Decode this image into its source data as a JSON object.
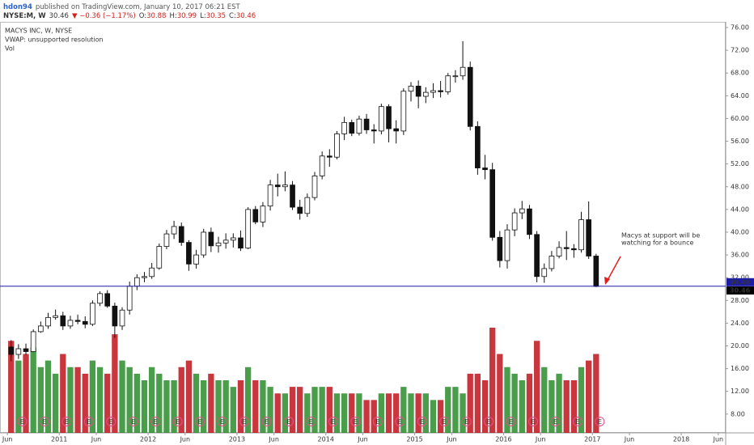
{
  "header": {
    "user": "hdon94",
    "published": "published on TradingView.com, January 10, 2017 06:21 EST",
    "symbol": "NYSE:M, W",
    "last": "30.46",
    "change": "▼ −0.36 (−1.17%)",
    "ohlc": [
      {
        "label": "O:",
        "value": "30.88"
      },
      {
        "label": "H:",
        "value": "30.99"
      },
      {
        "label": "L:",
        "value": "30.35"
      },
      {
        "label": "C:",
        "value": "30.46"
      }
    ]
  },
  "chart_data": {
    "type": "candlestick",
    "legend": [
      "MACYS INC, W, NYSE",
      "VWAP: unsupported resolution",
      "Vol"
    ],
    "x": [
      "2010-06",
      "2010-07",
      "2010-08",
      "2010-09",
      "2010-10",
      "2010-11",
      "2010-12",
      "2011-01",
      "2011-02",
      "2011-03",
      "2011-04",
      "2011-05",
      "2011-06",
      "2011-07",
      "2011-08",
      "2011-09",
      "2011-10",
      "2011-11",
      "2011-12",
      "2012-01",
      "2012-02",
      "2012-03",
      "2012-04",
      "2012-05",
      "2012-06",
      "2012-07",
      "2012-08",
      "2012-09",
      "2012-10",
      "2012-11",
      "2012-12",
      "2013-01",
      "2013-02",
      "2013-03",
      "2013-04",
      "2013-05",
      "2013-06",
      "2013-07",
      "2013-08",
      "2013-09",
      "2013-10",
      "2013-11",
      "2013-12",
      "2014-01",
      "2014-02",
      "2014-03",
      "2014-04",
      "2014-05",
      "2014-06",
      "2014-07",
      "2014-08",
      "2014-09",
      "2014-10",
      "2014-11",
      "2014-12",
      "2015-01",
      "2015-02",
      "2015-03",
      "2015-04",
      "2015-05",
      "2015-06",
      "2015-07",
      "2015-08",
      "2015-09",
      "2015-10",
      "2015-11",
      "2015-12",
      "2016-01",
      "2016-02",
      "2016-03",
      "2016-04",
      "2016-05",
      "2016-06",
      "2016-07",
      "2016-08",
      "2016-09",
      "2016-10",
      "2016-11",
      "2016-12",
      "2017-01"
    ],
    "open": [
      19.8,
      18.5,
      19.5,
      19,
      22.5,
      23.5,
      25,
      25.3,
      23.5,
      24.5,
      24.3,
      23.8,
      27.5,
      29.2,
      27,
      23.5,
      26.3,
      30.5,
      32,
      32.2,
      33.7,
      37.5,
      39.7,
      41,
      38.2,
      34.4,
      36,
      40,
      37.6,
      38.1,
      38.6,
      39,
      37.2,
      44,
      41.8,
      44.6,
      48.3,
      48,
      48.3,
      44.4,
      43.3,
      46.1,
      49.9,
      53.4,
      53.2,
      57.3,
      59.3,
      57.4,
      59.9,
      58,
      57.8,
      62.1,
      58.2,
      57.8,
      64.8,
      65.7,
      63.9,
      64.6,
      64.9,
      64.7,
      67.5,
      67.5,
      69,
      58.6,
      51.3,
      51,
      39.1,
      35,
      40.4,
      43.4,
      44.1,
      39.6,
      32.2,
      33.6,
      35.8,
      37.3,
      37.1,
      36.9,
      42.2,
      35.8
    ],
    "high": [
      21,
      20.3,
      20.4,
      22.9,
      24.3,
      25.8,
      26.4,
      26,
      25.3,
      25.5,
      25.2,
      28,
      29.6,
      29.8,
      27.6,
      26.8,
      31.3,
      32.6,
      33,
      34.6,
      38,
      40.4,
      42,
      41.7,
      38.6,
      36.9,
      40.6,
      40.8,
      39.2,
      39.8,
      39.8,
      40.3,
      44.4,
      44.6,
      45.3,
      49.2,
      50.3,
      50.7,
      49,
      45.7,
      46.8,
      50.6,
      54.2,
      54.6,
      57.8,
      60.3,
      59.8,
      60.5,
      60.8,
      59,
      62.6,
      62.5,
      59.7,
      65.3,
      66.4,
      66.7,
      65.5,
      66.2,
      66.6,
      68,
      68.5,
      73.6,
      70,
      59.5,
      53.6,
      52.2,
      40.2,
      41.4,
      44.2,
      45.5,
      44.8,
      40.2,
      34.5,
      36.7,
      38.4,
      40.2,
      37.9,
      43.6,
      45.4,
      36.2
    ],
    "low": [
      17.3,
      17.7,
      18.4,
      18.9,
      22.3,
      23,
      24.6,
      22.8,
      23,
      23.8,
      23.1,
      23.5,
      27,
      26.7,
      21.4,
      22.8,
      25.5,
      29.8,
      31.2,
      31.8,
      33.4,
      37,
      38.8,
      37.6,
      33.2,
      33.6,
      35.5,
      36.5,
      36.4,
      37.1,
      37.3,
      36.7,
      37,
      41.4,
      40.9,
      43.8,
      46.3,
      47.2,
      43.9,
      42.2,
      42.7,
      45.6,
      49.3,
      51.5,
      52.8,
      56.2,
      56.9,
      57,
      57.3,
      55.6,
      57.2,
      55.8,
      55.6,
      57.1,
      63,
      61.8,
      62.7,
      63.6,
      63.7,
      64.2,
      66.3,
      66.8,
      57.9,
      50.1,
      49.3,
      38.5,
      33.8,
      33.6,
      39.3,
      42.3,
      38.8,
      31.2,
      31.1,
      33.1,
      35.4,
      35.1,
      35.5,
      36.4,
      35.3,
      30.35
    ],
    "close": [
      18.5,
      19.5,
      19,
      22.5,
      23.5,
      25,
      25.3,
      23.5,
      24.5,
      24.3,
      23.8,
      27.5,
      29.2,
      27,
      23.5,
      26.3,
      30.5,
      32,
      32.2,
      33.7,
      37.5,
      39.7,
      41,
      38.2,
      34.4,
      36,
      40,
      37.6,
      38.1,
      38.6,
      39,
      37.2,
      44,
      41.8,
      44.6,
      48.3,
      48,
      48.3,
      44.4,
      43.3,
      46.1,
      49.9,
      53.4,
      53.2,
      57.3,
      59.3,
      57.4,
      59.9,
      58,
      57.8,
      62.1,
      58.2,
      57.8,
      64.8,
      65.7,
      63.9,
      64.6,
      64.9,
      64.7,
      67.5,
      67.5,
      69,
      58.6,
      51.3,
      51,
      39.1,
      35,
      40.4,
      43.4,
      44.1,
      39.6,
      32.2,
      33.6,
      35.8,
      37.3,
      37.1,
      36.9,
      42.2,
      35.8,
      30.46
    ],
    "volume": [
      14,
      11,
      12,
      13,
      10,
      11,
      9,
      12,
      10,
      10,
      9,
      11,
      10,
      9,
      15,
      11,
      10,
      9,
      8,
      10,
      9,
      8,
      8,
      10,
      11,
      9,
      8,
      9,
      8,
      8,
      7,
      8,
      10,
      8,
      8,
      7,
      6,
      6,
      7,
      7,
      6,
      7,
      7,
      7,
      6,
      6,
      6,
      6,
      5,
      5,
      6,
      6,
      6,
      7,
      6,
      6,
      6,
      5,
      5,
      7,
      7,
      6,
      9,
      9,
      8,
      16,
      12,
      10,
      9,
      8,
      9,
      14,
      10,
      8,
      9,
      8,
      8,
      10,
      11,
      12
    ],
    "candle_color": "#111111",
    "volume_colors": {
      "up": "#2a8c2a",
      "down": "#c0141c"
    },
    "xlim": [
      "2010-05",
      "2018-07"
    ],
    "xticks": [
      {
        "value": "2010-06",
        "label": "Jun"
      },
      {
        "value": "2011-01",
        "label": "2011"
      },
      {
        "value": "2011-06",
        "label": "Jun"
      },
      {
        "value": "2012-01",
        "label": "2012"
      },
      {
        "value": "2012-06",
        "label": "Jun"
      },
      {
        "value": "2013-01",
        "label": "2013"
      },
      {
        "value": "2013-06",
        "label": "Jun"
      },
      {
        "value": "2014-01",
        "label": "2014"
      },
      {
        "value": "2014-06",
        "label": "Jun"
      },
      {
        "value": "2015-01",
        "label": "2015"
      },
      {
        "value": "2015-06",
        "label": "Jun"
      },
      {
        "value": "2016-01",
        "label": "2016"
      },
      {
        "value": "2016-06",
        "label": "Jun"
      },
      {
        "value": "2017-01",
        "label": "2017"
      },
      {
        "value": "2017-06",
        "label": "Jun"
      },
      {
        "value": "2018-01",
        "label": "2018"
      },
      {
        "value": "2018-06",
        "label": "Jun"
      }
    ],
    "ylim": [
      4.7,
      77
    ],
    "yticks": [
      {
        "value": 8,
        "label": "8.00"
      },
      {
        "value": 12,
        "label": "12.00"
      },
      {
        "value": 16,
        "label": "16.00"
      },
      {
        "value": 20,
        "label": "20.00"
      },
      {
        "value": 24,
        "label": "24.00"
      },
      {
        "value": 28,
        "label": "28.00"
      },
      {
        "value": 32,
        "label": "32.00"
      },
      {
        "value": 36,
        "label": "36.00"
      },
      {
        "value": 40,
        "label": "40.00"
      },
      {
        "value": 44,
        "label": "44.00"
      },
      {
        "value": 48,
        "label": "48.00"
      },
      {
        "value": 52,
        "label": "52.00"
      },
      {
        "value": 56,
        "label": "56.00"
      },
      {
        "value": 60,
        "label": "60.00"
      },
      {
        "value": 64,
        "label": "64.00"
      },
      {
        "value": 68,
        "label": "68.00"
      },
      {
        "value": 72,
        "label": "72.00"
      },
      {
        "value": 76,
        "label": "76.00"
      }
    ],
    "price_markers": [
      {
        "value": 30.49,
        "label": "30.49",
        "color": "#1c1ca8"
      },
      {
        "value": 30.46,
        "label": "30.46",
        "color": "#000000"
      }
    ],
    "support_color": "#1c1ca8",
    "annotation": {
      "lines": [
        "Macys at support will be",
        "watching for a bounce"
      ],
      "color": "#e0201c"
    },
    "earnings": {
      "label": "E",
      "color": "#e0508a",
      "dates": [
        "2010-08",
        "2010-11",
        "2011-02",
        "2011-05",
        "2011-08",
        "2011-11",
        "2012-02",
        "2012-05",
        "2012-08",
        "2012-11",
        "2013-02",
        "2013-05",
        "2013-08",
        "2013-11",
        "2014-02",
        "2014-05",
        "2014-08",
        "2014-11",
        "2015-02",
        "2015-05",
        "2015-08",
        "2015-11",
        "2016-02",
        "2016-05",
        "2016-08",
        "2016-11",
        "2017-02"
      ]
    }
  }
}
